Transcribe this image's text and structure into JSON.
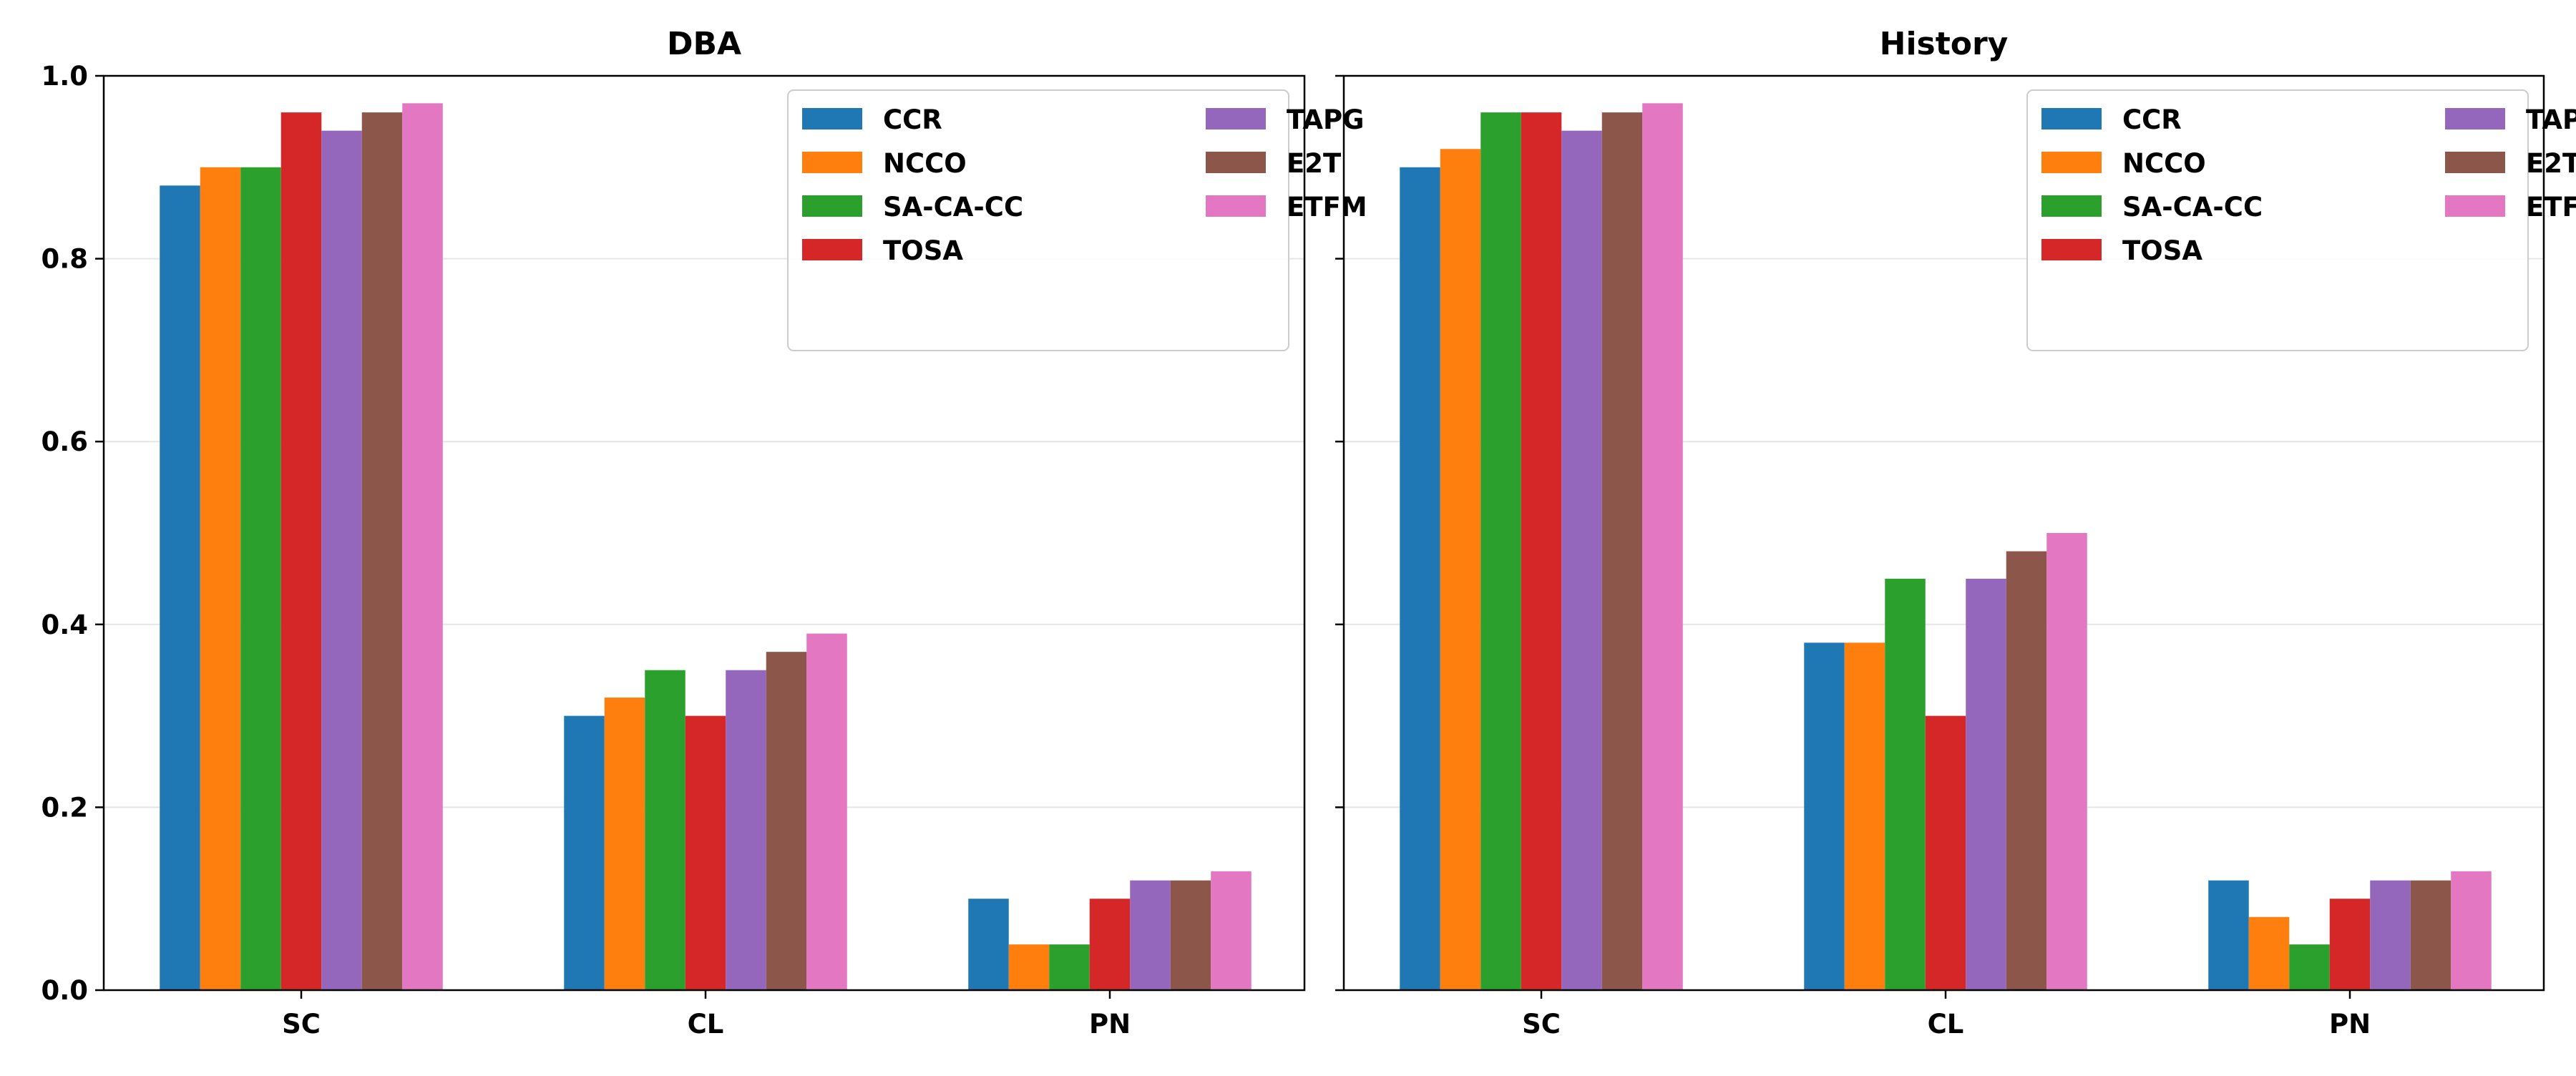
{
  "chart_data": [
    {
      "type": "bar",
      "title": "DBA",
      "xlabel": "",
      "ylabel": "",
      "categories": [
        "SC",
        "CL",
        "PN"
      ],
      "ylim": [
        0,
        1.0
      ],
      "yticks": [
        "0.0",
        "0.2",
        "0.4",
        "0.6",
        "0.8",
        "1.0"
      ],
      "grid": "horizontal",
      "legend_position": "top-right",
      "series": [
        {
          "name": "CCR",
          "color": "#1f77b4",
          "values": [
            0.88,
            0.3,
            0.1
          ]
        },
        {
          "name": "NCCO",
          "color": "#ff7f0e",
          "values": [
            0.9,
            0.32,
            0.05
          ]
        },
        {
          "name": "SA-CA-CC",
          "color": "#2ca02c",
          "values": [
            0.9,
            0.35,
            0.05
          ]
        },
        {
          "name": "TOSA",
          "color": "#d62728",
          "values": [
            0.96,
            0.3,
            0.1
          ]
        },
        {
          "name": "TAPG",
          "color": "#9467bd",
          "values": [
            0.94,
            0.35,
            0.12
          ]
        },
        {
          "name": "E2T",
          "color": "#8c564b",
          "values": [
            0.96,
            0.37,
            0.12
          ]
        },
        {
          "name": "ETFM",
          "color": "#e377c2",
          "values": [
            0.97,
            0.39,
            0.13
          ]
        }
      ]
    },
    {
      "type": "bar",
      "title": "History",
      "xlabel": "",
      "ylabel": "",
      "categories": [
        "SC",
        "CL",
        "PN"
      ],
      "ylim": [
        0,
        1.0
      ],
      "yticks": [
        "0.0",
        "0.2",
        "0.4",
        "0.6",
        "0.8",
        "1.0"
      ],
      "grid": "horizontal",
      "legend_position": "top-right",
      "series": [
        {
          "name": "CCR",
          "color": "#1f77b4",
          "values": [
            0.9,
            0.38,
            0.12
          ]
        },
        {
          "name": "NCCO",
          "color": "#ff7f0e",
          "values": [
            0.92,
            0.38,
            0.08
          ]
        },
        {
          "name": "SA-CA-CC",
          "color": "#2ca02c",
          "values": [
            0.96,
            0.45,
            0.05
          ]
        },
        {
          "name": "TOSA",
          "color": "#d62728",
          "values": [
            0.96,
            0.3,
            0.1
          ]
        },
        {
          "name": "TAPG",
          "color": "#9467bd",
          "values": [
            0.94,
            0.45,
            0.12
          ]
        },
        {
          "name": "E2T",
          "color": "#8c564b",
          "values": [
            0.96,
            0.48,
            0.12
          ]
        },
        {
          "name": "ETFM",
          "color": "#e377c2",
          "values": [
            0.97,
            0.5,
            0.13
          ]
        }
      ]
    }
  ]
}
